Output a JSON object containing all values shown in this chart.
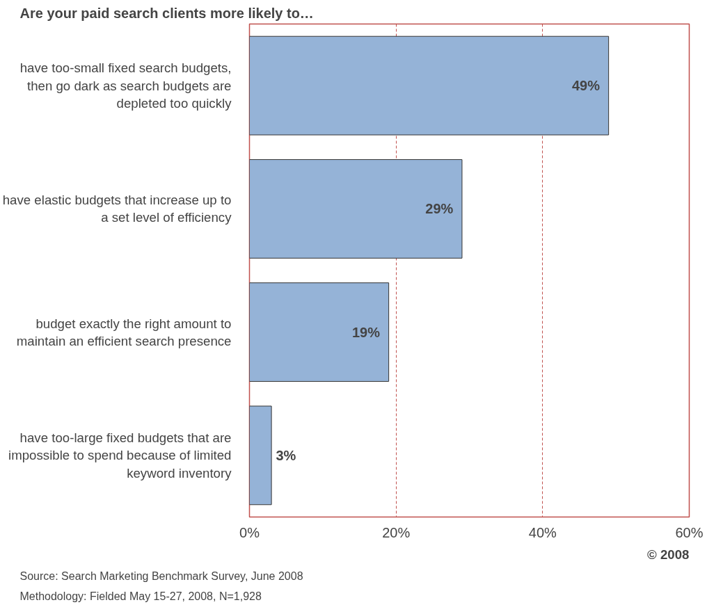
{
  "chart_data": {
    "type": "bar",
    "orientation": "horizontal",
    "title": "Are your paid search clients more likely to…",
    "categories": [
      "have too-small fixed search budgets, then go dark as search budgets are depleted too quickly",
      "have elastic budgets that increase up to a set level of efficiency",
      "budget exactly the right amount to maintain an efficient search presence",
      "have too-large fixed budgets that are impossible to spend because of limited keyword inventory"
    ],
    "values": [
      49,
      29,
      19,
      3
    ],
    "value_labels": [
      "49%",
      "29%",
      "19%",
      "3%"
    ],
    "color": "#95b3d7",
    "xlim": [
      0,
      60
    ],
    "xticks": [
      {
        "value": 0,
        "label": "0%"
      },
      {
        "value": 20,
        "label": "20%"
      },
      {
        "value": 40,
        "label": "40%"
      },
      {
        "value": 60,
        "label": "60%"
      }
    ],
    "grid": "x",
    "annotations": [
      "Source: Search Marketing Benchmark Survey, June 2008",
      "Methodology: Fielded May 15-27, 2008, N=1,928",
      "© 2008"
    ]
  }
}
